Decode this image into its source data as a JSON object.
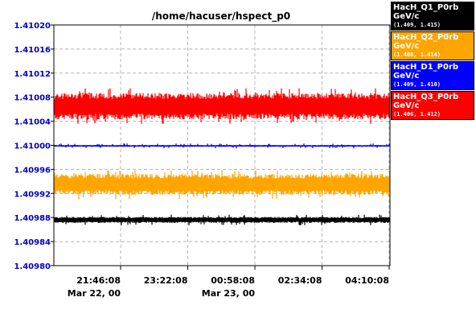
{
  "chart_data": {
    "type": "line",
    "title": "/home/hacuser/hspect_p0",
    "ylim": [
      1.4098,
      1.4102
    ],
    "yticks": [
      "1.40980",
      "1.40984",
      "1.40988",
      "1.40992",
      "1.40996",
      "1.41000",
      "1.41004",
      "1.41008",
      "1.41012",
      "1.41016",
      "1.41020"
    ],
    "xticks": [
      {
        "time": "21:46:08",
        "date": "Mar 22, 00"
      },
      {
        "time": "23:22:08",
        "date": ""
      },
      {
        "time": "00:58:08",
        "date": "Mar 23, 00"
      },
      {
        "time": "02:34:08",
        "date": ""
      },
      {
        "time": "04:10:08",
        "date": ""
      }
    ],
    "grid": true,
    "legend_position": "right",
    "series": [
      {
        "name": "HacH_Q1_P0rb",
        "unit": "GeV/c",
        "range": "(1.409, 1.415)",
        "color": "#000000",
        "text_color": "#ffffff",
        "center": 1.409876,
        "halfwidth": 5e-06,
        "spike": 9e-06
      },
      {
        "name": "HacH_Q2_P0rb",
        "unit": "GeV/c",
        "range": "(1.408, 1.414)",
        "color": "#ffa500",
        "text_color": "#ffffff",
        "center": 1.409935,
        "halfwidth": 1.75e-05,
        "spike": 2.5e-05
      },
      {
        "name": "HacH_D1_P0rb",
        "unit": "GeV/c",
        "range": "(1.409, 1.410)",
        "color": "#0000ff",
        "text_color": "#ffffff",
        "center": 1.409999,
        "halfwidth": 1.5e-06,
        "spike": 4e-06
      },
      {
        "name": "HacH_Q3_P0rb",
        "unit": "GeV/c",
        "range": "(1.406, 1.412)",
        "color": "#ff0000",
        "text_color": "#ffffff",
        "center": 1.410065,
        "halfwidth": 2.2e-05,
        "spike": 3e-05
      }
    ]
  }
}
